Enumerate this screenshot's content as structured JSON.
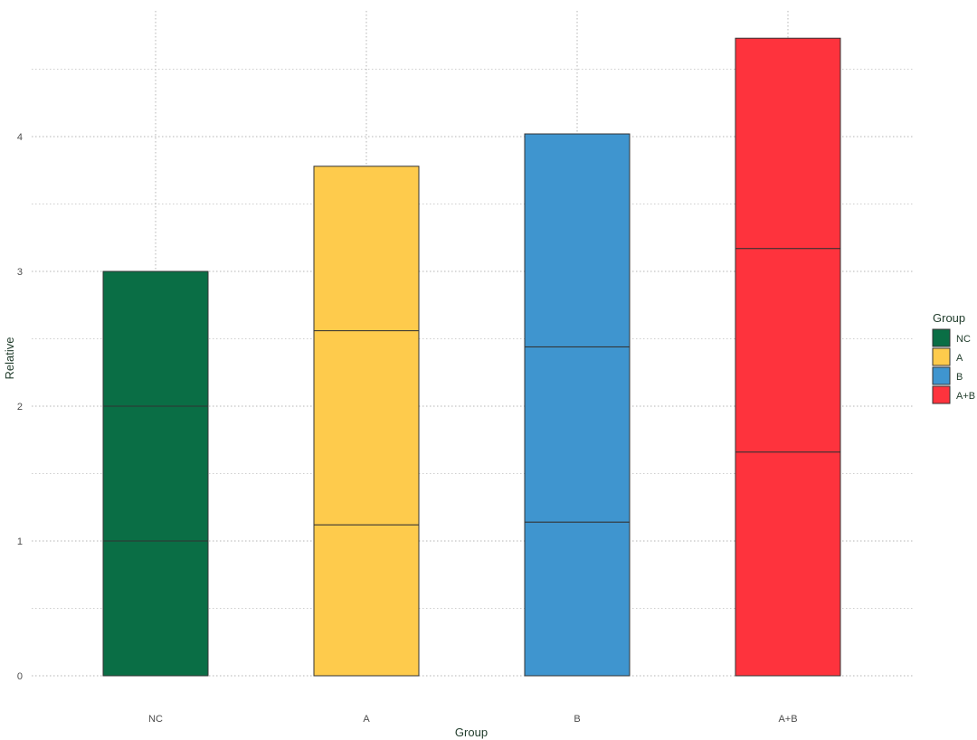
{
  "chart_data": {
    "type": "bar",
    "stacked": true,
    "xlabel": "Group",
    "ylabel": "Relative",
    "ylim": [
      0,
      4.75
    ],
    "yticks": [
      0,
      1,
      2,
      3,
      4
    ],
    "grid": "dotted",
    "legend": {
      "title": "Group",
      "position": "right",
      "entries": [
        "NC",
        "A",
        "B",
        "A+B"
      ]
    },
    "categories": [
      {
        "label": "NC",
        "color": "#0a6e45",
        "segments": [
          1.0,
          1.0,
          1.0
        ]
      },
      {
        "label": "A",
        "color": "#fecb4c",
        "segments": [
          1.12,
          1.44,
          1.22
        ]
      },
      {
        "label": "B",
        "color": "#3f95cf",
        "segments": [
          1.14,
          1.3,
          1.58
        ]
      },
      {
        "label": "A+B",
        "color": "#fe333d",
        "segments": [
          1.66,
          1.51,
          1.56
        ]
      }
    ]
  }
}
